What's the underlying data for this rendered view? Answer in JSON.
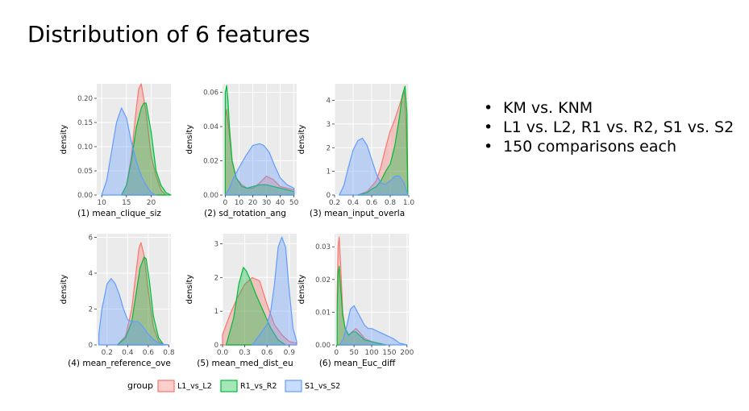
{
  "slide": {
    "title": "Distribution of 6 features"
  },
  "bullets": [
    "KM vs. KNM",
    "L1 vs. L2, R1 vs. R2, S1 vs. S2",
    "150 comparisons each"
  ],
  "colors": {
    "L1_vs_L2": "#f8766d",
    "R1_vs_R2": "#00ba38",
    "S1_vs_S2": "#619cff",
    "panel_bg": "#ebebeb",
    "grid": "#ffffff"
  },
  "legend": {
    "title": "group",
    "entries": [
      "L1_vs_L2",
      "R1_vs_R2",
      "S1_vs_S2"
    ]
  },
  "chart_data": [
    {
      "type": "area",
      "title": "",
      "xlabel": "(1) mean_clique_siz",
      "ylabel": "density",
      "xlim": [
        9,
        24
      ],
      "ylim": [
        0,
        0.23
      ],
      "xticks": [
        10,
        15,
        20
      ],
      "yticks": [
        0.0,
        0.05,
        0.1,
        0.15,
        0.2
      ],
      "xtick_labels": [
        "10",
        "15",
        "20"
      ],
      "ytick_labels": [
        "0.00",
        "0.05",
        "0.10",
        "0.15",
        "0.20"
      ],
      "series": [
        {
          "name": "L1_vs_L2",
          "x": [
            14,
            15,
            16,
            17,
            17.5,
            18,
            18.5,
            19,
            20,
            21,
            22,
            23
          ],
          "y": [
            0.0,
            0.02,
            0.08,
            0.18,
            0.22,
            0.23,
            0.2,
            0.17,
            0.08,
            0.04,
            0.01,
            0.0
          ]
        },
        {
          "name": "R1_vs_R2",
          "x": [
            14,
            15,
            16,
            17,
            18,
            18.5,
            19,
            20,
            21,
            22,
            23,
            24
          ],
          "y": [
            0.0,
            0.02,
            0.07,
            0.14,
            0.18,
            0.19,
            0.19,
            0.13,
            0.05,
            0.02,
            0.005,
            0.0
          ]
        },
        {
          "name": "S1_vs_S2",
          "x": [
            10,
            11,
            12,
            13,
            14,
            15,
            16,
            17,
            18,
            19,
            20,
            21
          ],
          "y": [
            0.0,
            0.03,
            0.09,
            0.15,
            0.18,
            0.16,
            0.11,
            0.07,
            0.04,
            0.02,
            0.005,
            0.0
          ]
        }
      ]
    },
    {
      "type": "area",
      "title": "",
      "xlabel": "(2) sd_rotation_ang",
      "ylabel": "density",
      "xlim": [
        -2,
        52
      ],
      "ylim": [
        0,
        0.065
      ],
      "xticks": [
        0,
        10,
        20,
        30,
        40,
        50
      ],
      "yticks": [
        0.0,
        0.02,
        0.04,
        0.06
      ],
      "xtick_labels": [
        "0",
        "10",
        "20",
        "30",
        "40",
        "50"
      ],
      "ytick_labels": [
        "0.00",
        "0.02",
        "0.04",
        "0.06"
      ],
      "series": [
        {
          "name": "L1_vs_L2",
          "x": [
            0,
            1,
            3,
            5,
            8,
            12,
            16,
            20,
            25,
            30,
            35,
            40,
            45,
            50
          ],
          "y": [
            0.045,
            0.05,
            0.035,
            0.02,
            0.01,
            0.006,
            0.004,
            0.004,
            0.007,
            0.011,
            0.009,
            0.005,
            0.004,
            0.003
          ]
        },
        {
          "name": "R1_vs_R2",
          "x": [
            0,
            1,
            2,
            3,
            5,
            8,
            12,
            16,
            20,
            25,
            30,
            35,
            40,
            45,
            50
          ],
          "y": [
            0.06,
            0.064,
            0.055,
            0.04,
            0.02,
            0.01,
            0.005,
            0.004,
            0.005,
            0.006,
            0.006,
            0.005,
            0.004,
            0.003,
            0.002
          ]
        },
        {
          "name": "S1_vs_S2",
          "x": [
            0,
            3,
            6,
            10,
            15,
            20,
            25,
            28,
            32,
            36,
            40,
            45,
            50
          ],
          "y": [
            0.0,
            0.004,
            0.01,
            0.016,
            0.023,
            0.029,
            0.03,
            0.029,
            0.025,
            0.017,
            0.01,
            0.006,
            0.004
          ]
        }
      ]
    },
    {
      "type": "area",
      "title": "",
      "xlabel": "(3) mean_input_overla",
      "ylabel": "density",
      "xlim": [
        0.2,
        1.0
      ],
      "ylim": [
        0,
        4.7
      ],
      "xticks": [
        0.2,
        0.4,
        0.6,
        0.8,
        1.0
      ],
      "yticks": [
        0,
        1,
        2,
        3,
        4
      ],
      "xtick_labels": [
        "0.2",
        "0.4",
        "0.6",
        "0.8",
        "1.0"
      ],
      "ytick_labels": [
        "0",
        "1",
        "2",
        "3",
        "4"
      ],
      "series": [
        {
          "name": "L1_vs_L2",
          "x": [
            0.45,
            0.55,
            0.65,
            0.7,
            0.75,
            0.8,
            0.85,
            0.9,
            0.95,
            0.97,
            0.99
          ],
          "y": [
            0.0,
            0.15,
            0.6,
            1.2,
            2.0,
            2.7,
            3.2,
            3.8,
            4.4,
            3.0,
            0.0
          ]
        },
        {
          "name": "R1_vs_R2",
          "x": [
            0.45,
            0.55,
            0.6,
            0.65,
            0.7,
            0.75,
            0.8,
            0.85,
            0.9,
            0.93,
            0.96,
            0.98,
            0.99
          ],
          "y": [
            0.0,
            0.1,
            0.25,
            0.35,
            0.6,
            1.0,
            1.3,
            2.1,
            3.3,
            4.2,
            4.6,
            3.5,
            0.0
          ]
        },
        {
          "name": "S1_vs_S2",
          "x": [
            0.25,
            0.3,
            0.35,
            0.4,
            0.45,
            0.5,
            0.55,
            0.6,
            0.65,
            0.7,
            0.75,
            0.8,
            0.85,
            0.9,
            0.95,
            0.99
          ],
          "y": [
            0.0,
            0.4,
            1.2,
            1.9,
            2.3,
            2.4,
            2.1,
            1.5,
            0.9,
            0.5,
            0.45,
            0.6,
            0.8,
            0.8,
            0.5,
            0.0
          ]
        }
      ]
    },
    {
      "type": "area",
      "title": "",
      "xlabel": "(4) mean_reference_ove",
      "ylabel": "density",
      "xlim": [
        0.1,
        0.82
      ],
      "ylim": [
        0,
        6.2
      ],
      "xticks": [
        0.2,
        0.4,
        0.6,
        0.8
      ],
      "yticks": [
        0,
        2,
        4,
        6
      ],
      "xtick_labels": [
        "0.2",
        "0.4",
        "0.6",
        "0.8"
      ],
      "ytick_labels": [
        "0",
        "2",
        "4",
        "6"
      ],
      "series": [
        {
          "name": "L1_vs_L2",
          "x": [
            0.3,
            0.38,
            0.44,
            0.48,
            0.51,
            0.53,
            0.56,
            0.6,
            0.65,
            0.7,
            0.75
          ],
          "y": [
            0.0,
            0.5,
            2.0,
            4.0,
            5.4,
            5.7,
            5.0,
            3.0,
            1.0,
            0.2,
            0.0
          ]
        },
        {
          "name": "R1_vs_R2",
          "x": [
            0.3,
            0.38,
            0.44,
            0.48,
            0.52,
            0.56,
            0.58,
            0.61,
            0.65,
            0.7,
            0.75
          ],
          "y": [
            0.0,
            0.4,
            1.3,
            2.8,
            4.3,
            4.9,
            4.8,
            3.6,
            1.6,
            0.4,
            0.0
          ]
        },
        {
          "name": "S1_vs_S2",
          "x": [
            0.12,
            0.15,
            0.2,
            0.24,
            0.28,
            0.32,
            0.36,
            0.4,
            0.45,
            0.5,
            0.55,
            0.6,
            0.65,
            0.7,
            0.75,
            0.8
          ],
          "y": [
            0.6,
            2.0,
            3.4,
            3.7,
            3.4,
            2.8,
            2.0,
            1.4,
            1.3,
            1.3,
            1.0,
            0.6,
            0.3,
            0.1,
            0.03,
            0.0
          ]
        }
      ]
    },
    {
      "type": "area",
      "title": "",
      "xlabel": "(5) mean_med_dist_eu",
      "ylabel": "density",
      "xlim": [
        0.0,
        1.0
      ],
      "ylim": [
        0,
        3.3
      ],
      "xticks": [
        0.0,
        0.3,
        0.6,
        0.9
      ],
      "yticks": [
        0,
        1,
        2,
        3
      ],
      "xtick_labels": [
        "0.0",
        "0.3",
        "0.6",
        "0.9"
      ],
      "ytick_labels": [
        "0",
        "1",
        "2",
        "3"
      ],
      "series": [
        {
          "name": "L1_vs_L2",
          "x": [
            0.0,
            0.1,
            0.2,
            0.3,
            0.4,
            0.5,
            0.6,
            0.7,
            0.8,
            0.9,
            1.0
          ],
          "y": [
            0.3,
            0.9,
            1.4,
            1.8,
            2.0,
            1.9,
            1.2,
            0.6,
            0.3,
            0.1,
            0.05
          ]
        },
        {
          "name": "R1_vs_R2",
          "x": [
            0.05,
            0.15,
            0.22,
            0.28,
            0.32,
            0.38,
            0.45,
            0.55,
            0.65,
            0.75,
            0.85
          ],
          "y": [
            0.0,
            0.8,
            1.8,
            2.3,
            2.2,
            1.9,
            1.5,
            1.0,
            0.5,
            0.15,
            0.0
          ]
        },
        {
          "name": "S1_vs_S2",
          "x": [
            0.4,
            0.5,
            0.55,
            0.6,
            0.65,
            0.7,
            0.75,
            0.8,
            0.85,
            0.9,
            0.95,
            1.0
          ],
          "y": [
            0.0,
            0.3,
            0.45,
            0.6,
            1.0,
            1.8,
            2.9,
            3.2,
            2.9,
            1.6,
            0.5,
            0.1
          ]
        }
      ]
    },
    {
      "type": "area",
      "title": "",
      "xlabel": "(6) mean_Euc_diff",
      "ylabel": "density",
      "xlim": [
        -5,
        205
      ],
      "ylim": [
        0,
        0.034
      ],
      "xticks": [
        0,
        50,
        100,
        150,
        200
      ],
      "yticks": [
        0.0,
        0.01,
        0.02,
        0.03
      ],
      "xtick_labels": [
        "0",
        "50",
        "100",
        "150",
        "200"
      ],
      "ytick_labels": [
        "0.00",
        "0.01",
        "0.02",
        "0.03"
      ],
      "series": [
        {
          "name": "L1_vs_L2",
          "x": [
            2,
            5,
            8,
            12,
            18,
            25,
            35,
            45,
            55,
            65,
            80,
            100,
            120,
            140
          ],
          "y": [
            0.015,
            0.03,
            0.033,
            0.025,
            0.01,
            0.005,
            0.003,
            0.004,
            0.005,
            0.004,
            0.002,
            0.001,
            0.0005,
            0.0
          ]
        },
        {
          "name": "R1_vs_R2",
          "x": [
            2,
            5,
            8,
            12,
            18,
            25,
            35,
            45,
            55,
            65,
            80,
            100,
            120,
            140
          ],
          "y": [
            0.01,
            0.022,
            0.024,
            0.018,
            0.009,
            0.005,
            0.003,
            0.004,
            0.004,
            0.003,
            0.0015,
            0.001,
            0.0005,
            0.0
          ]
        },
        {
          "name": "S1_vs_S2",
          "x": [
            10,
            20,
            30,
            40,
            50,
            60,
            70,
            80,
            90,
            100,
            120,
            140,
            160,
            180,
            200
          ],
          "y": [
            0.0,
            0.002,
            0.006,
            0.011,
            0.012,
            0.01,
            0.008,
            0.006,
            0.005,
            0.005,
            0.004,
            0.003,
            0.002,
            0.0005,
            0.0
          ]
        }
      ]
    }
  ]
}
